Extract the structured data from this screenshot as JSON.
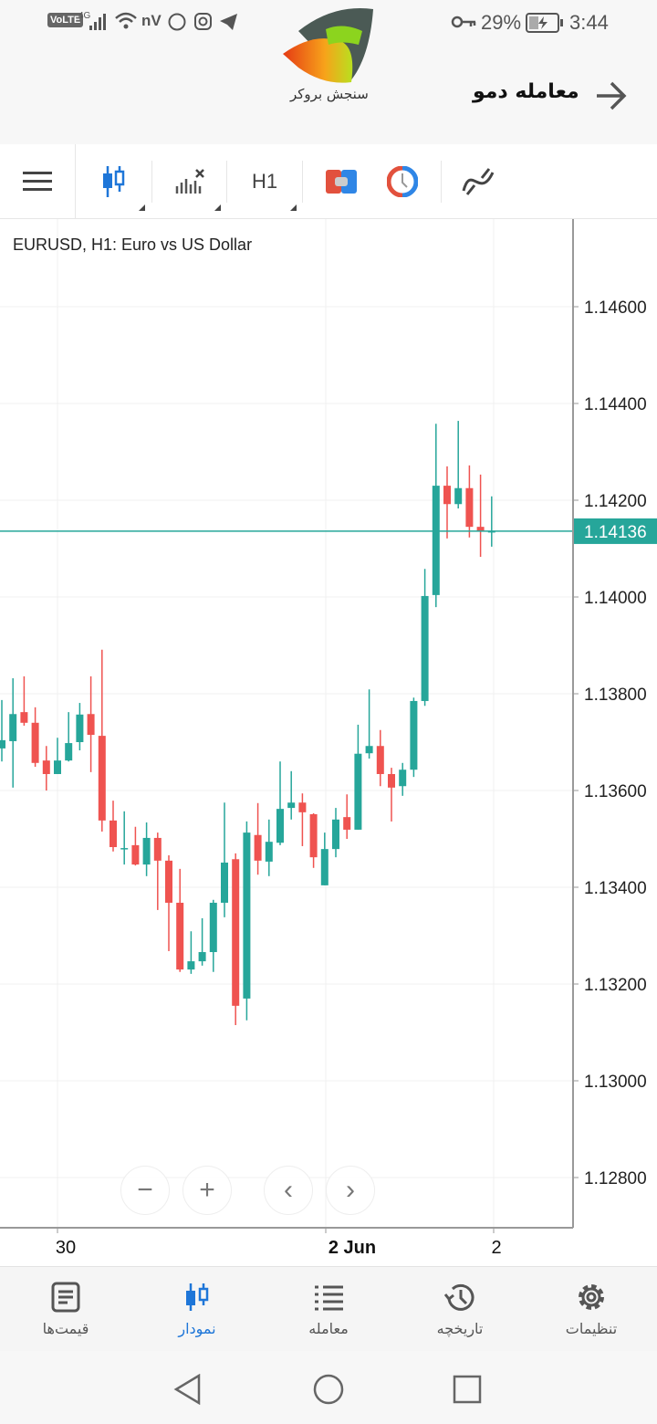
{
  "status_bar": {
    "signal_text": "VoLTE",
    "network": "4G",
    "vpn": "nV",
    "battery": "29%",
    "time": "3:44"
  },
  "header": {
    "title": "معامله دمو",
    "logo_text": "سنجش بروکر",
    "back_icon": "arrow-right-icon"
  },
  "toolbar": {
    "timeframe": "H1",
    "icons": [
      "menu-icon",
      "candlestick-icon",
      "indicators-icon",
      "timeframe",
      "trade-icon",
      "clock-icon",
      "objects-icon"
    ]
  },
  "chart": {
    "symbol_title": "EURUSD, H1: Euro vs US Dollar",
    "current_price_label": "1.14136"
  },
  "chart_data": {
    "type": "candlestick",
    "title": "EURUSD, H1: Euro vs US Dollar",
    "ylim": [
      1.127,
      1.1478
    ],
    "y_ticks": [
      "1.14600",
      "1.14400",
      "1.14200",
      "1.14000",
      "1.13800",
      "1.13600",
      "1.13400",
      "1.13200",
      "1.13000",
      "1.12800"
    ],
    "x_tick_labels": [
      "30",
      "2 Jun",
      "2"
    ],
    "current_price": 1.14136,
    "colors": {
      "up": "#26a69a",
      "down": "#ef5350",
      "price_line": "#26a69a"
    },
    "grid": true,
    "ohlc": [
      [
        1.13687,
        1.13787,
        1.1366,
        1.13704
      ],
      [
        1.13702,
        1.13832,
        1.13606,
        1.13758
      ],
      [
        1.13762,
        1.13836,
        1.13734,
        1.1374
      ],
      [
        1.1374,
        1.13772,
        1.13649,
        1.13657
      ],
      [
        1.13662,
        1.13692,
        1.136,
        1.13634
      ],
      [
        1.13634,
        1.13709,
        1.13634,
        1.13662
      ],
      [
        1.13662,
        1.13762,
        1.1366,
        1.13698
      ],
      [
        1.137,
        1.13781,
        1.13683,
        1.13757
      ],
      [
        1.13758,
        1.13836,
        1.13638,
        1.13715
      ],
      [
        1.13713,
        1.13891,
        1.13515,
        1.13538
      ],
      [
        1.13538,
        1.13579,
        1.13474,
        1.13483
      ],
      [
        1.13481,
        1.13557,
        1.13447,
        1.13481
      ],
      [
        1.13487,
        1.13525,
        1.13445,
        1.13447
      ],
      [
        1.13447,
        1.13534,
        1.13423,
        1.13502
      ],
      [
        1.13502,
        1.13513,
        1.13353,
        1.13455
      ],
      [
        1.13455,
        1.13466,
        1.13268,
        1.13368
      ],
      [
        1.13368,
        1.13438,
        1.13225,
        1.1323
      ],
      [
        1.1323,
        1.13309,
        1.13221,
        1.13247
      ],
      [
        1.13247,
        1.13336,
        1.13238,
        1.13266
      ],
      [
        1.13266,
        1.13374,
        1.13225,
        1.13368
      ],
      [
        1.13368,
        1.13575,
        1.13338,
        1.13451
      ],
      [
        1.13458,
        1.1347,
        1.13115,
        1.13155
      ],
      [
        1.1317,
        1.13536,
        1.13125,
        1.13513
      ],
      [
        1.13508,
        1.13574,
        1.13426,
        1.13455
      ],
      [
        1.13453,
        1.1354,
        1.13423,
        1.13494
      ],
      [
        1.13492,
        1.1366,
        1.13487,
        1.13562
      ],
      [
        1.13564,
        1.1364,
        1.1354,
        1.13575
      ],
      [
        1.13575,
        1.13594,
        1.13485,
        1.13555
      ],
      [
        1.13551,
        1.13553,
        1.1344,
        1.13462
      ],
      [
        1.13404,
        1.13513,
        1.13404,
        1.13479
      ],
      [
        1.13479,
        1.13564,
        1.13462,
        1.1354
      ],
      [
        1.13545,
        1.13592,
        1.135,
        1.13519
      ],
      [
        1.13519,
        1.13736,
        1.13519,
        1.13676
      ],
      [
        1.13677,
        1.13809,
        1.13666,
        1.13692
      ],
      [
        1.13692,
        1.13725,
        1.13609,
        1.13634
      ],
      [
        1.13634,
        1.13647,
        1.13536,
        1.13606
      ],
      [
        1.13609,
        1.13657,
        1.13589,
        1.13643
      ],
      [
        1.13643,
        1.13792,
        1.13628,
        1.13785
      ],
      [
        1.13785,
        1.14058,
        1.13775,
        1.14002
      ],
      [
        1.14004,
        1.14358,
        1.13979,
        1.1423
      ],
      [
        1.1423,
        1.1427,
        1.14121,
        1.14192
      ],
      [
        1.14192,
        1.14364,
        1.14183,
        1.14225
      ],
      [
        1.14225,
        1.14272,
        1.14123,
        1.14145
      ],
      [
        1.14145,
        1.14253,
        1.14083,
        1.14136
      ],
      [
        1.14136,
        1.14208,
        1.14104,
        1.14136
      ]
    ]
  },
  "zoom_controls": {
    "zoom_out": "−",
    "zoom_in": "+",
    "prev": "‹",
    "next": "›"
  },
  "bottom_nav": {
    "items": [
      {
        "label": "قیمت‌ها",
        "icon": "quotes-icon"
      },
      {
        "label": "نمودار",
        "icon": "chart-icon",
        "active": true
      },
      {
        "label": "معامله",
        "icon": "trade-list-icon"
      },
      {
        "label": "تاریخچه",
        "icon": "history-icon"
      },
      {
        "label": "تنظیمات",
        "icon": "settings-icon"
      }
    ],
    "accent": "#1e76d8"
  }
}
